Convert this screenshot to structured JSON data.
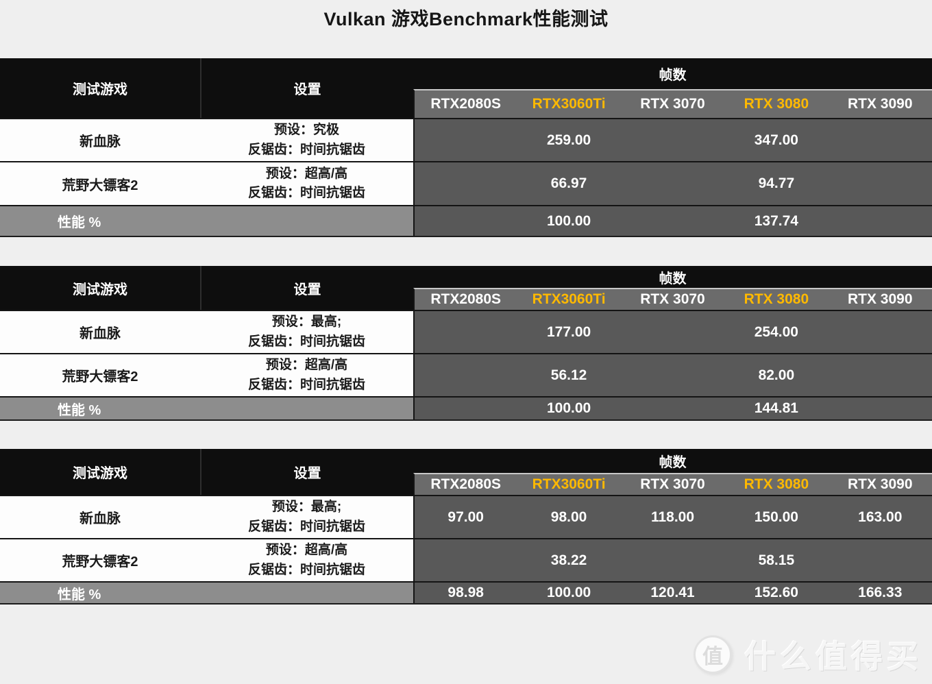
{
  "colors": {
    "accent_orange": "#ffb900",
    "header_black": "#0e0e0e",
    "value_cell_gray": "#595959",
    "gpu_row_gray": "#6b6b6b",
    "perf_label_gray": "#8d8d8d",
    "page_background": "#efefef"
  },
  "watermark": {
    "badge": "值",
    "text": "什么值得买"
  },
  "chart_data": {
    "type": "table",
    "title": "Vulkan 游戏Benchmark性能测试",
    "header": {
      "game": "测试游戏",
      "settings": "设置",
      "frames": "帧数",
      "gpus": [
        "RTX2080S",
        "RTX3060Ti",
        "RTX 3070",
        "RTX 3080",
        "RTX 3090"
      ],
      "highlight_columns": [
        1,
        3
      ]
    },
    "tables": [
      {
        "rows": [
          {
            "game": "新血脉",
            "settings": [
              "预设：究极",
              "反锯齿：时间抗锯齿"
            ],
            "values": [
              "",
              "259.00",
              "",
              "347.00",
              ""
            ]
          },
          {
            "game": "荒野大镖客2",
            "settings": [
              "预设：超高/高",
              "反锯齿：时间抗锯齿"
            ],
            "values": [
              "",
              "66.97",
              "",
              "94.77",
              ""
            ]
          }
        ],
        "perf": {
          "label": "性能 %",
          "values": [
            "",
            "100.00",
            "",
            "137.74",
            ""
          ]
        }
      },
      {
        "rows": [
          {
            "game": "新血脉",
            "settings": [
              "预设：最高;",
              "反锯齿：时间抗锯齿"
            ],
            "values": [
              "",
              "177.00",
              "",
              "254.00",
              ""
            ]
          },
          {
            "game": "荒野大镖客2",
            "settings": [
              "预设：超高/高",
              "反锯齿：时间抗锯齿"
            ],
            "values": [
              "",
              "56.12",
              "",
              "82.00",
              ""
            ]
          }
        ],
        "perf": {
          "label": "性能 %",
          "values": [
            "",
            "100.00",
            "",
            "144.81",
            ""
          ]
        }
      },
      {
        "rows": [
          {
            "game": "新血脉",
            "settings": [
              "预设：最高;",
              "反锯齿：时间抗锯齿"
            ],
            "values": [
              "97.00",
              "98.00",
              "118.00",
              "150.00",
              "163.00"
            ]
          },
          {
            "game": "荒野大镖客2",
            "settings": [
              "预设：超高/高",
              "反锯齿：时间抗锯齿"
            ],
            "values": [
              "",
              "38.22",
              "",
              "58.15",
              ""
            ]
          }
        ],
        "perf": {
          "label": "性能 %",
          "values": [
            "98.98",
            "100.00",
            "120.41",
            "152.60",
            "166.33"
          ]
        }
      }
    ]
  }
}
